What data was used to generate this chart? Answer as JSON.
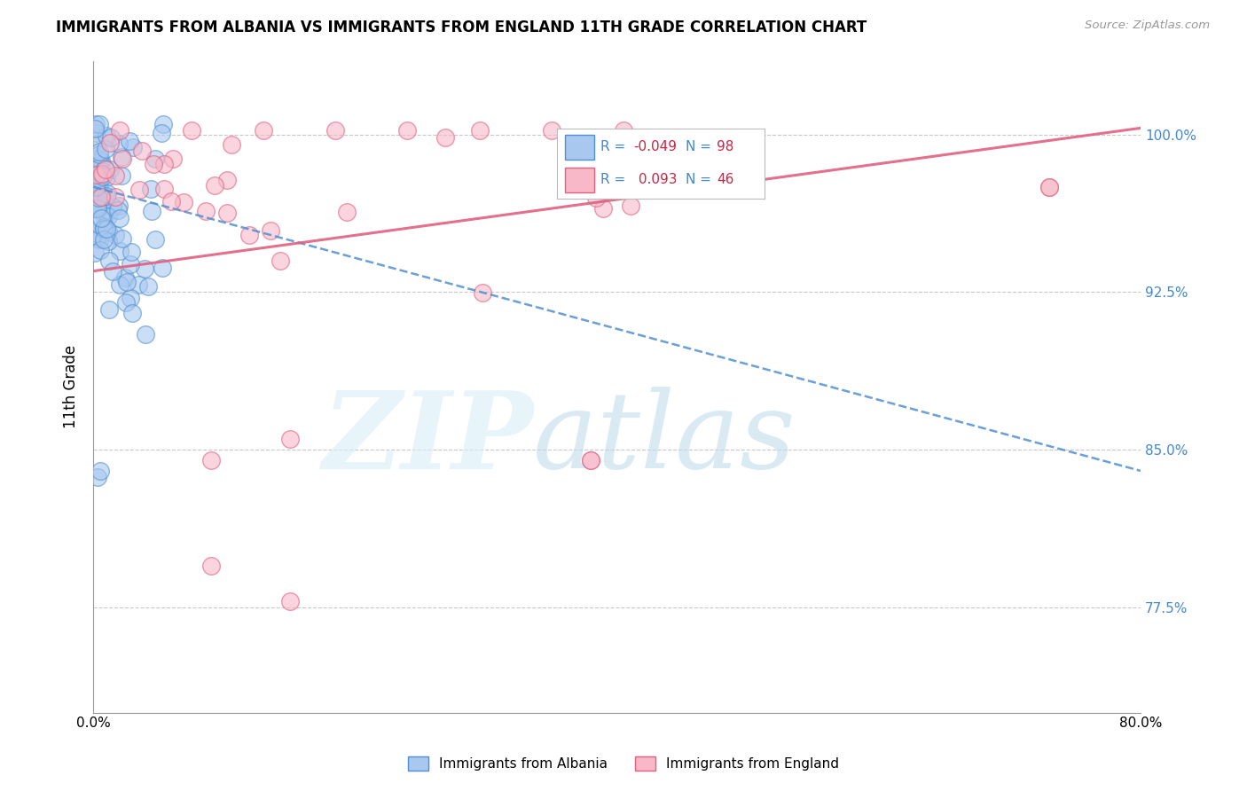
{
  "title": "IMMIGRANTS FROM ALBANIA VS IMMIGRANTS FROM ENGLAND 11TH GRADE CORRELATION CHART",
  "source": "Source: ZipAtlas.com",
  "ylabel": "11th Grade",
  "ytick_labels": [
    "100.0%",
    "92.5%",
    "85.0%",
    "77.5%"
  ],
  "ytick_values": [
    1.0,
    0.925,
    0.85,
    0.775
  ],
  "albania_color": "#A8C8F0",
  "albania_edge_color": "#5090D0",
  "england_color": "#F8B8C8",
  "england_edge_color": "#E06080",
  "albania_trend_color": "#5090D0",
  "england_trend_color": "#E06080",
  "albania_R": -0.049,
  "albania_N": 98,
  "england_R": 0.093,
  "england_N": 46,
  "xlim": [
    0.0,
    0.8
  ],
  "ylim": [
    0.725,
    1.035
  ],
  "legend_R_color": "#CC2244",
  "legend_N_color": "#CC2244",
  "legend_label_color": "#4488CC",
  "right_axis_color": "#4488CC"
}
